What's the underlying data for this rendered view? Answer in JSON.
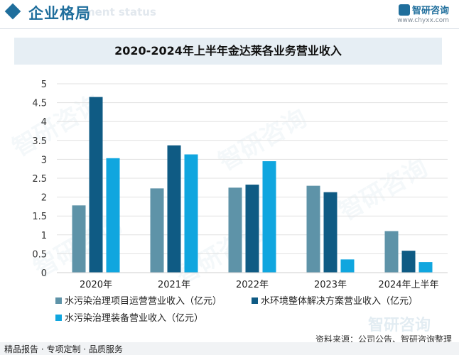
{
  "header": {
    "section_title": "企业格局",
    "section_sub": "ment status",
    "brand_name": "智研咨询",
    "brand_url": "www.chyxx.com"
  },
  "watermark": "智研咨询",
  "source": "资料来源：公司公告、智研咨询整理",
  "footer": "精品报告 · 专项定制 · 品质服务",
  "colors": {
    "accent": "#1f6e9c",
    "series1": "#5e93a8",
    "series2": "#0f5b84",
    "series3": "#10a6df"
  },
  "chart_data": {
    "type": "bar",
    "title": "2020-2024年上半年金达莱各业务营业收入",
    "categories": [
      "2020年",
      "2021年",
      "2022年",
      "2023年",
      "2024年上半年"
    ],
    "series": [
      {
        "name": "水污染治理项目运营营业收入（亿元）",
        "values": [
          1.78,
          2.23,
          2.25,
          2.3,
          1.1
        ]
      },
      {
        "name": "水环境整体解决方案营业收入（亿元）",
        "values": [
          4.65,
          3.37,
          2.33,
          2.13,
          0.58
        ]
      },
      {
        "name": "水污染治理装备营业收入（亿元）",
        "values": [
          3.03,
          3.13,
          2.95,
          0.35,
          0.28
        ]
      }
    ],
    "ylim": [
      0,
      5
    ],
    "yticks": [
      "0",
      "0.5",
      "1",
      "1.5",
      "2",
      "2.5",
      "3",
      "3.5",
      "4",
      "4.5",
      "5"
    ],
    "grid": true,
    "legend_position": "bottom"
  }
}
